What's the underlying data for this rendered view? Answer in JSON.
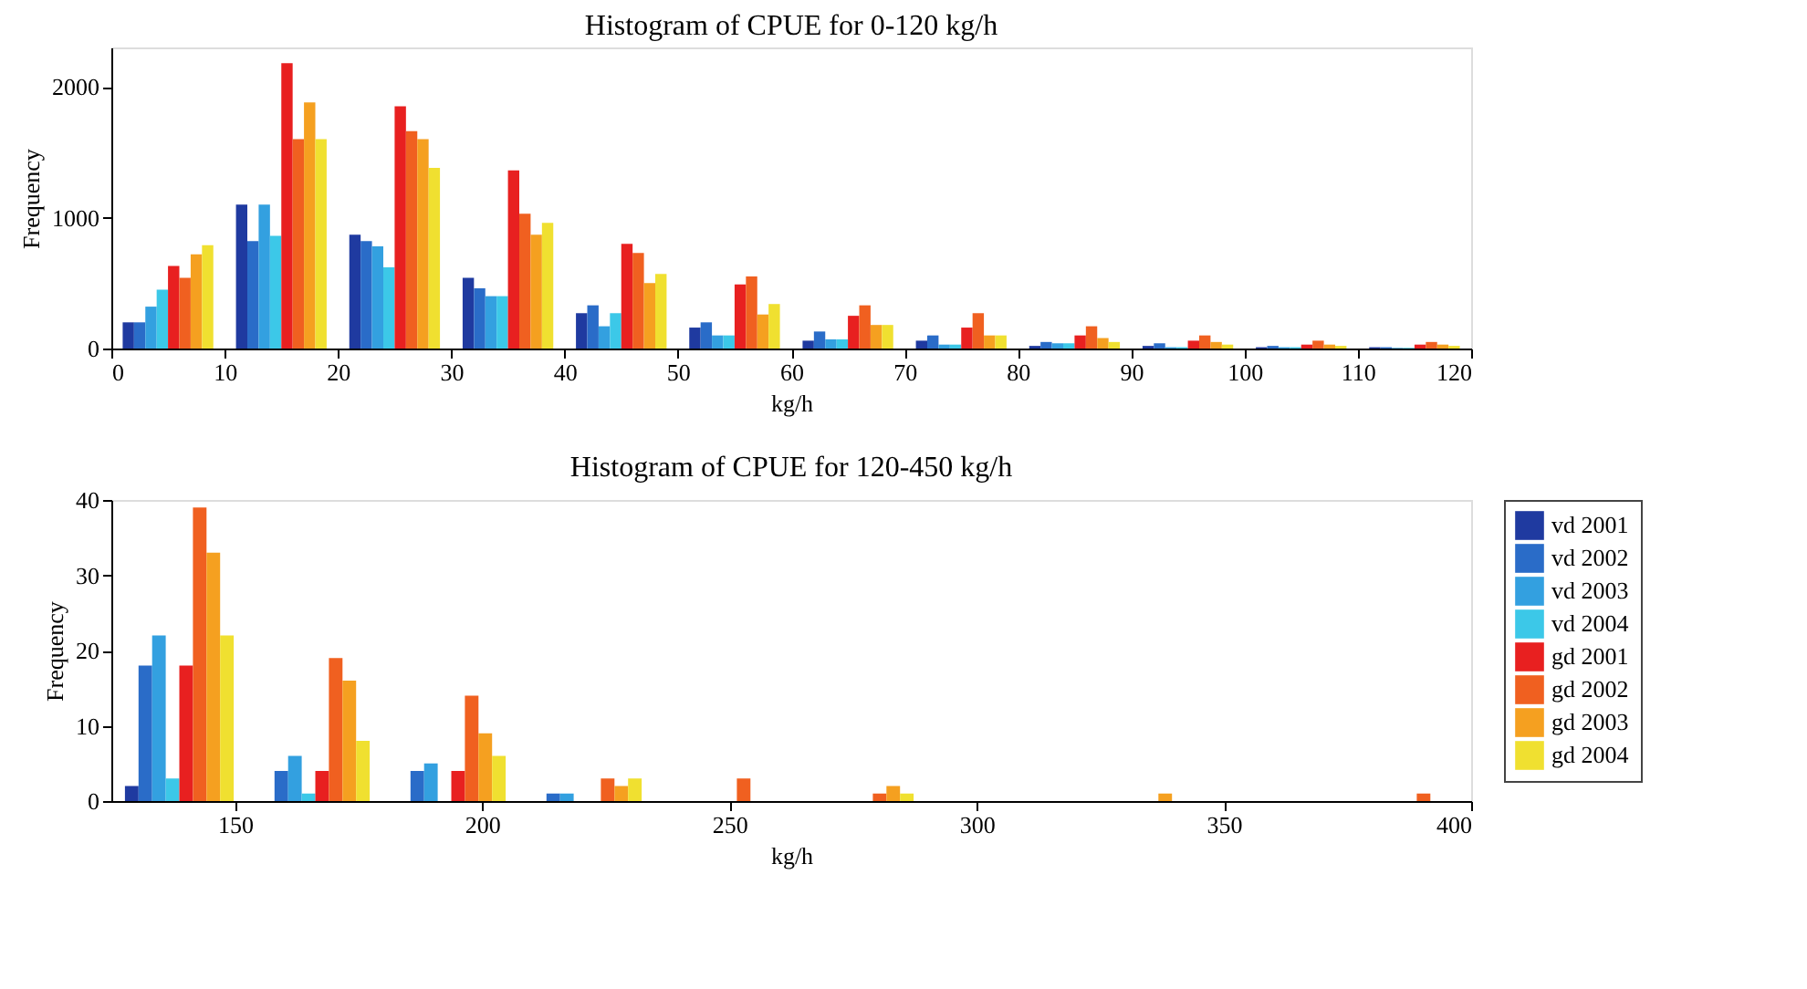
{
  "chart_data": [
    {
      "type": "histogram",
      "title": "Histogram of CPUE for 0-120 kg/h",
      "xlabel": "kg/h",
      "ylabel": "Frequency",
      "bins": [
        0,
        10,
        20,
        30,
        40,
        50,
        60,
        70,
        80,
        90,
        100,
        110,
        120
      ],
      "xlim": [
        0,
        120
      ],
      "xticks": [
        0,
        10,
        20,
        30,
        40,
        50,
        60,
        70,
        80,
        90,
        100,
        110,
        120
      ],
      "ylim": [
        0,
        2300
      ],
      "yticks": [
        0,
        1000,
        2000
      ],
      "grid": false,
      "legend": false,
      "series": [
        {
          "color": "#1f3aa0",
          "values": [
            200,
            1100,
            870,
            540,
            270,
            160,
            60,
            60,
            20,
            20,
            10,
            10
          ]
        },
        {
          "color": "#2a6cc8",
          "values": [
            200,
            820,
            820,
            460,
            330,
            200,
            130,
            100,
            50,
            40,
            20,
            10
          ]
        },
        {
          "color": "#33a0e0",
          "values": [
            320,
            1100,
            780,
            400,
            170,
            100,
            70,
            30,
            40,
            10,
            10,
            5
          ]
        },
        {
          "color": "#3cc8e8",
          "values": [
            450,
            860,
            620,
            400,
            270,
            100,
            70,
            30,
            40,
            10,
            10,
            5
          ]
        },
        {
          "color": "#e82020",
          "values": [
            630,
            2180,
            1850,
            1360,
            800,
            490,
            250,
            160,
            100,
            60,
            30,
            30
          ]
        },
        {
          "color": "#f06020",
          "values": [
            540,
            1600,
            1660,
            1030,
            730,
            550,
            330,
            270,
            170,
            100,
            60,
            50
          ]
        },
        {
          "color": "#f5a020",
          "values": [
            720,
            1880,
            1600,
            870,
            500,
            260,
            180,
            100,
            80,
            50,
            30,
            30
          ]
        },
        {
          "color": "#f0e030",
          "values": [
            790,
            1600,
            1380,
            960,
            570,
            340,
            180,
            100,
            50,
            30,
            20,
            20
          ]
        }
      ]
    },
    {
      "type": "histogram",
      "title": "Histogram of CPUE for 120-450 kg/h",
      "xlabel": "kg/h",
      "ylabel": "Frequency",
      "bins": [
        125,
        152.5,
        180,
        207.5,
        235,
        262.5,
        290,
        317.5,
        345,
        372.5,
        400
      ],
      "xlim": [
        125,
        400
      ],
      "xticks": [
        150,
        200,
        250,
        300,
        350,
        400
      ],
      "ylim": [
        0,
        40
      ],
      "yticks": [
        0,
        10,
        20,
        30,
        40
      ],
      "grid": false,
      "legend": "right",
      "series": [
        {
          "name": "vd 2001",
          "color": "#1f3aa0",
          "values": [
            2,
            0,
            0,
            0,
            0,
            0,
            0,
            0,
            0,
            0
          ]
        },
        {
          "name": "vd 2002",
          "color": "#2a6cc8",
          "values": [
            18,
            4,
            4,
            1,
            0,
            0,
            0,
            0,
            0,
            0
          ]
        },
        {
          "name": "vd 2003",
          "color": "#33a0e0",
          "values": [
            22,
            6,
            5,
            1,
            0,
            0,
            0,
            0,
            0,
            0
          ]
        },
        {
          "name": "vd 2004",
          "color": "#3cc8e8",
          "values": [
            3,
            1,
            0,
            0,
            0,
            0,
            0,
            0,
            0,
            0
          ]
        },
        {
          "name": "gd 2001",
          "color": "#e82020",
          "values": [
            18,
            4,
            4,
            0,
            0,
            0,
            0,
            0,
            0,
            0
          ]
        },
        {
          "name": "gd 2002",
          "color": "#f06020",
          "values": [
            39,
            19,
            14,
            3,
            3,
            1,
            0,
            0,
            0,
            1
          ]
        },
        {
          "name": "gd 2003",
          "color": "#f5a020",
          "values": [
            33,
            16,
            9,
            2,
            0,
            2,
            0,
            1,
            0,
            0
          ]
        },
        {
          "name": "gd 2004",
          "color": "#f0e030",
          "values": [
            22,
            8,
            6,
            3,
            0,
            1,
            0,
            0,
            0,
            0
          ]
        }
      ]
    }
  ]
}
